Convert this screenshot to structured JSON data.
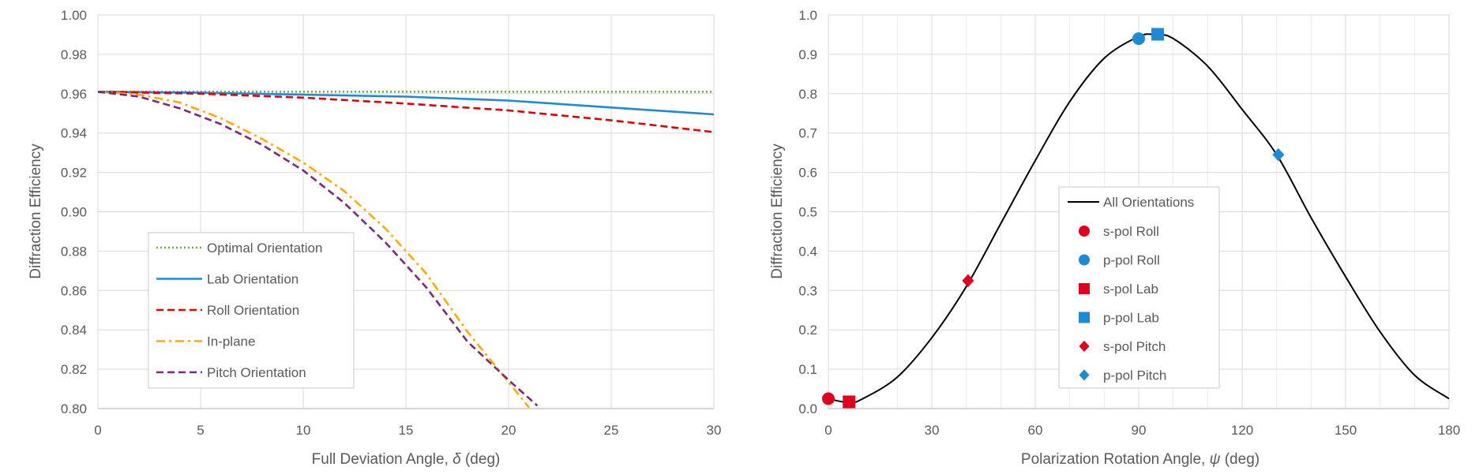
{
  "chart_data": [
    {
      "type": "line",
      "xlabel_prefix": "Full Deviation Angle, ",
      "xlabel_symbol": "δ",
      "xlabel_suffix": " (deg)",
      "ylabel": "Diffraction Efficiency",
      "xlim": [
        0,
        30
      ],
      "ylim": [
        0.8,
        1.0
      ],
      "xticks": [
        0,
        5,
        10,
        15,
        20,
        25,
        30
      ],
      "yticks": [
        "0.80",
        "0.82",
        "0.84",
        "0.86",
        "0.88",
        "0.90",
        "0.92",
        "0.94",
        "0.96",
        "0.98",
        "1.00"
      ],
      "grid": true,
      "legend_position": "bottom-left",
      "series": [
        {
          "name": "Optimal Orientation",
          "color": "#70ad47",
          "dash": "dotted",
          "x": [
            0,
            30
          ],
          "y": [
            0.961,
            0.961
          ]
        },
        {
          "name": "Lab Orientation",
          "color": "#1f8ad4",
          "dash": "solid",
          "x": [
            0,
            5,
            10,
            15,
            20,
            25,
            30
          ],
          "y": [
            0.961,
            0.9605,
            0.9595,
            0.9585,
            0.9565,
            0.953,
            0.9495
          ]
        },
        {
          "name": "Roll Orientation",
          "color": "#e00000",
          "dash": "dashed",
          "x": [
            0,
            5,
            10,
            15,
            20,
            25,
            30
          ],
          "y": [
            0.961,
            0.96,
            0.958,
            0.955,
            0.9515,
            0.9465,
            0.9405
          ]
        },
        {
          "name": "In-plane",
          "color": "#ffaa00",
          "dash": "dashdot",
          "x": [
            0,
            2,
            4,
            6,
            8,
            10,
            12,
            14,
            16,
            18,
            20,
            21
          ],
          "y": [
            0.961,
            0.9595,
            0.9555,
            0.9475,
            0.937,
            0.925,
            0.9105,
            0.8915,
            0.8685,
            0.839,
            0.8135,
            0.8005
          ]
        },
        {
          "name": "Pitch Orientation",
          "color": "#7b2a7b",
          "dash": "dashed",
          "x": [
            0,
            2,
            4,
            6,
            8,
            10,
            12,
            14,
            16,
            18,
            20,
            21.4
          ],
          "y": [
            0.961,
            0.9585,
            0.9525,
            0.9445,
            0.934,
            0.921,
            0.9045,
            0.8845,
            0.8615,
            0.834,
            0.8145,
            0.8015
          ]
        }
      ]
    },
    {
      "type": "line",
      "xlabel_prefix": "Polarization Rotation Angle, ",
      "xlabel_symbol": "ψ",
      "xlabel_suffix": " (deg)",
      "ylabel": "Diffraction Efficiency",
      "xlim": [
        0,
        180
      ],
      "ylim": [
        0,
        1.0
      ],
      "xticks": [
        0,
        30,
        60,
        90,
        120,
        150,
        180
      ],
      "yticks": [
        "0.0",
        "0.1",
        "0.2",
        "0.3",
        "0.4",
        "0.5",
        "0.6",
        "0.7",
        "0.8",
        "0.9",
        "1.0"
      ],
      "grid": true,
      "legend_position": "center-left",
      "curve": {
        "name": "All Orientations",
        "color": "#000000",
        "x": [
          0,
          6,
          10,
          20,
          30,
          40,
          50,
          60,
          70,
          80,
          90,
          95,
          100,
          110,
          120,
          130,
          140,
          150,
          160,
          170,
          180
        ],
        "y": [
          0.025,
          0.015,
          0.025,
          0.08,
          0.18,
          0.31,
          0.47,
          0.63,
          0.78,
          0.89,
          0.945,
          0.95,
          0.94,
          0.87,
          0.76,
          0.645,
          0.485,
          0.335,
          0.195,
          0.085,
          0.025
        ]
      },
      "markers": [
        {
          "name": "s-pol Roll",
          "shape": "circle",
          "color": "#e0001b",
          "x": 0,
          "y": 0.025
        },
        {
          "name": "p-pol Roll",
          "shape": "circle",
          "color": "#1f8ad4",
          "x": 90,
          "y": 0.94
        },
        {
          "name": "s-pol Lab",
          "shape": "square",
          "color": "#e0001b",
          "x": 6,
          "y": 0.017
        },
        {
          "name": "p-pol Lab",
          "shape": "square",
          "color": "#1f8ad4",
          "x": 95.5,
          "y": 0.951
        },
        {
          "name": "s-pol Pitch",
          "shape": "diamond",
          "color": "#e0001b",
          "x": 40.5,
          "y": 0.325
        },
        {
          "name": "p-pol Pitch",
          "shape": "diamond",
          "color": "#1f8ad4",
          "x": 130.5,
          "y": 0.645
        }
      ]
    }
  ]
}
